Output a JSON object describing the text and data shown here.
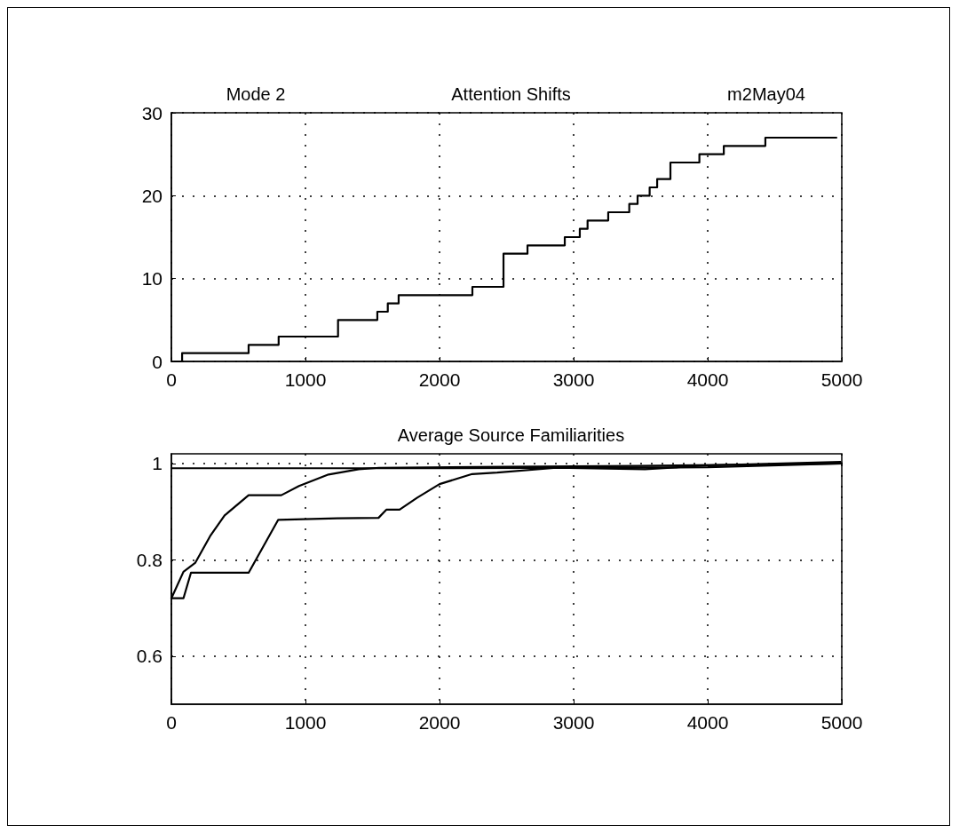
{
  "chart_data": [
    {
      "type": "step",
      "title": "Attention Shifts",
      "annotations": [
        "Mode 2",
        "m2May04"
      ],
      "grid": true,
      "marker": "none",
      "xlim": [
        0,
        5000
      ],
      "xticks": [
        0,
        1000,
        2000,
        3000,
        4000,
        5000
      ],
      "ylim": [
        0,
        30
      ],
      "yticks": [
        0,
        10,
        20,
        30
      ],
      "series": [
        {
          "color": "#000000",
          "x": [
            25,
            80,
            576,
            800,
            1243,
            1536,
            1614,
            1695,
            2245,
            2477,
            2656,
            2934,
            3046,
            3104,
            3258,
            3415,
            3477,
            3567,
            3623,
            3722,
            3938,
            4120,
            4430,
            4960
          ],
          "values": [
            0,
            1,
            2,
            3,
            5,
            6,
            7,
            8,
            9,
            13,
            14,
            15,
            16,
            17,
            18,
            19,
            20,
            21,
            22,
            24,
            25,
            26,
            27,
            27
          ]
        }
      ]
    },
    {
      "type": "line",
      "title": "Average Source Familiarities",
      "grid": true,
      "marker": "none",
      "xlim": [
        0,
        5000
      ],
      "xticks": [
        0,
        1000,
        2000,
        3000,
        4000,
        5000
      ],
      "ylim": [
        0.5,
        1.02
      ],
      "yticks": [
        0.6,
        0.8,
        1
      ],
      "series": [
        {
          "color": "#000000",
          "x": [
            0,
            90,
            179,
            289,
            397,
            576,
            820,
            952,
            1172,
            1397,
            1550,
            2500,
            3500,
            4500,
            5000
          ],
          "values": [
            0.72,
            0.775,
            0.794,
            0.849,
            0.892,
            0.934,
            0.934,
            0.953,
            0.977,
            0.988,
            0.991,
            0.993,
            0.995,
            0.998,
            1.0
          ]
        },
        {
          "color": "#000000",
          "x": [
            0,
            90,
            146,
            576,
            797,
            1238,
            1545,
            1603,
            1702,
            1834,
            2000,
            2243,
            2430,
            2870,
            3532,
            4007,
            4990
          ],
          "values": [
            0.72,
            0.72,
            0.773,
            0.773,
            0.883,
            0.886,
            0.887,
            0.904,
            0.904,
            0.929,
            0.957,
            0.978,
            0.981,
            0.991,
            0.988,
            0.996,
            1.003
          ]
        },
        {
          "color": "#000000",
          "x": [
            0,
            2000,
            4000,
            5000
          ],
          "values": [
            0.99,
            0.99,
            0.992,
            1.0
          ]
        }
      ]
    }
  ]
}
